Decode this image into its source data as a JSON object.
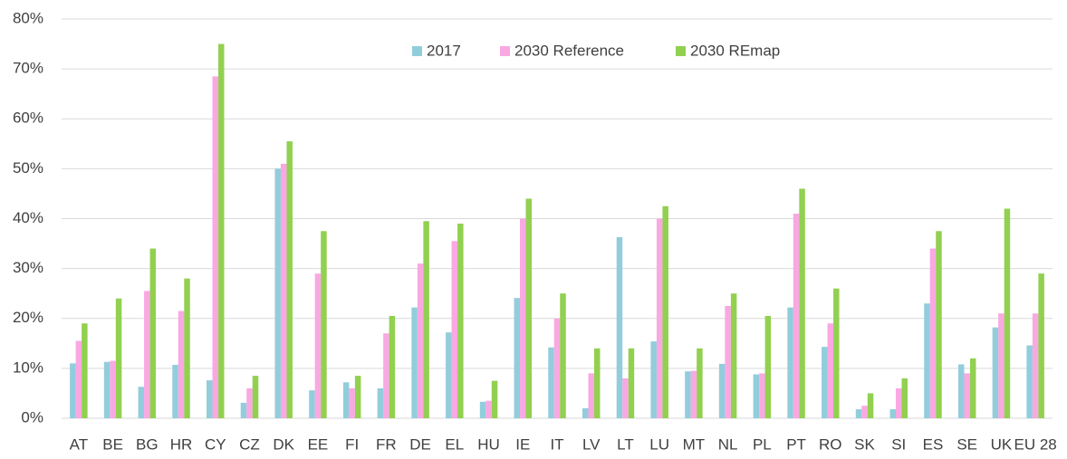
{
  "chart_data": {
    "type": "bar",
    "categories": [
      "AT",
      "BE",
      "BG",
      "HR",
      "CY",
      "CZ",
      "DK",
      "EE",
      "FI",
      "FR",
      "DE",
      "EL",
      "HU",
      "IE",
      "IT",
      "LV",
      "LT",
      "LU",
      "MT",
      "NL",
      "PL",
      "PT",
      "RO",
      "SK",
      "SI",
      "ES",
      "SE",
      "UK",
      "EU 28"
    ],
    "series": [
      {
        "name": "2017",
        "color": "#92cddc",
        "values": [
          11,
          11.3,
          6.3,
          10.7,
          7.6,
          3.1,
          50,
          5.6,
          7.2,
          6,
          22.2,
          17.2,
          3.3,
          24.1,
          14.2,
          2,
          36.3,
          15.4,
          9.4,
          10.9,
          8.8,
          22.2,
          14.3,
          1.8,
          1.8,
          23,
          10.8,
          18.2,
          14.6
        ]
      },
      {
        "name": "2030 Reference",
        "color": "#f9a8e2",
        "values": [
          15.5,
          11.5,
          25.5,
          21.5,
          68.5,
          6,
          51,
          29,
          6,
          17,
          31,
          35.5,
          3.5,
          40,
          20,
          9,
          8,
          40,
          9.5,
          22.5,
          9,
          41,
          19,
          2.5,
          6,
          34,
          9,
          21,
          21
        ]
      },
      {
        "name": "2030 REmap",
        "color": "#92d050",
        "values": [
          19,
          24,
          34,
          28,
          75,
          8.5,
          55.5,
          37.5,
          8.5,
          20.5,
          39.5,
          39,
          7.5,
          44,
          25,
          14,
          14,
          42.5,
          14,
          25,
          20.5,
          46,
          26,
          5,
          8,
          37.5,
          12,
          42,
          29
        ]
      }
    ],
    "ylim": [
      0,
      80
    ],
    "yticks": [
      {
        "value": 0,
        "label": "0%"
      },
      {
        "value": 10,
        "label": "10%"
      },
      {
        "value": 20,
        "label": "20%"
      },
      {
        "value": 30,
        "label": "30%"
      },
      {
        "value": 40,
        "label": "40%"
      },
      {
        "value": 50,
        "label": "50%"
      },
      {
        "value": 60,
        "label": "60%"
      },
      {
        "value": 70,
        "label": "70%"
      },
      {
        "value": 80,
        "label": "80%"
      }
    ],
    "grid": true
  }
}
